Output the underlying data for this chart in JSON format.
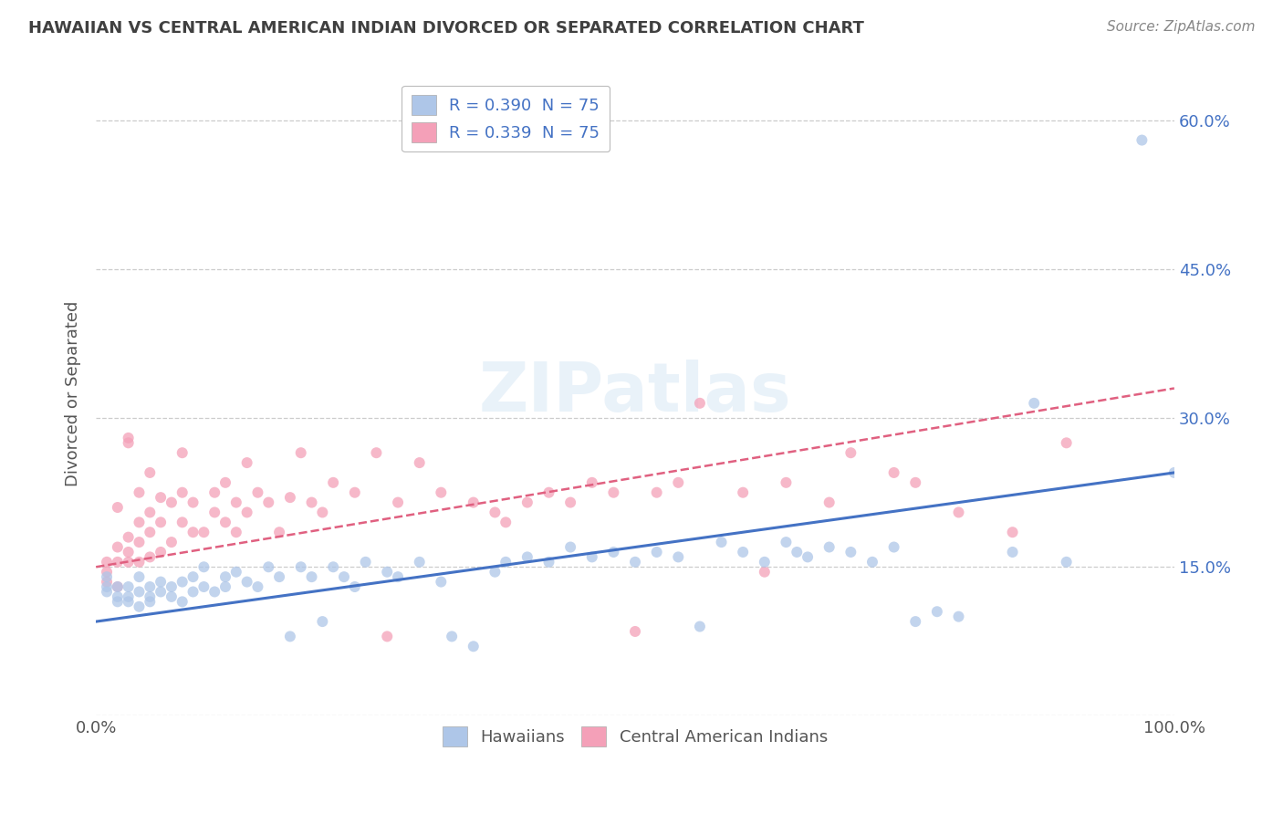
{
  "title": "HAWAIIAN VS CENTRAL AMERICAN INDIAN DIVORCED OR SEPARATED CORRELATION CHART",
  "source": "Source: ZipAtlas.com",
  "ylabel": "Divorced or Separated",
  "watermark": "ZIPatlas",
  "legend_entries": [
    {
      "label": "R = 0.390  N = 75",
      "color": "#aec6e8"
    },
    {
      "label": "R = 0.339  N = 75",
      "color": "#f4a0b8"
    }
  ],
  "legend_names": [
    "Hawaiians",
    "Central American Indians"
  ],
  "xlim": [
    0.0,
    1.0
  ],
  "ylim": [
    0.0,
    0.65
  ],
  "x_ticks": [
    0.0,
    0.1,
    0.2,
    0.3,
    0.4,
    0.5,
    0.6,
    0.7,
    0.8,
    0.9,
    1.0
  ],
  "x_tick_labels": [
    "0.0%",
    "",
    "",
    "",
    "",
    "",
    "",
    "",
    "",
    "",
    "100.0%"
  ],
  "y_ticks": [
    0.0,
    0.15,
    0.3,
    0.45,
    0.6
  ],
  "right_y_tick_labels": [
    "",
    "15.0%",
    "30.0%",
    "45.0%",
    "60.0%"
  ],
  "hawaiians_color": "#aec6e8",
  "central_american_color": "#f4a0b8",
  "hawaiians_line_color": "#4472c4",
  "central_american_line_color": "#e06080",
  "background_color": "#ffffff",
  "grid_color": "#cccccc",
  "hawaiians_scatter": [
    [
      0.01,
      0.125
    ],
    [
      0.01,
      0.13
    ],
    [
      0.01,
      0.14
    ],
    [
      0.02,
      0.115
    ],
    [
      0.02,
      0.13
    ],
    [
      0.02,
      0.12
    ],
    [
      0.03,
      0.13
    ],
    [
      0.03,
      0.12
    ],
    [
      0.03,
      0.115
    ],
    [
      0.04,
      0.14
    ],
    [
      0.04,
      0.125
    ],
    [
      0.04,
      0.11
    ],
    [
      0.05,
      0.13
    ],
    [
      0.05,
      0.12
    ],
    [
      0.05,
      0.115
    ],
    [
      0.06,
      0.135
    ],
    [
      0.06,
      0.125
    ],
    [
      0.07,
      0.13
    ],
    [
      0.07,
      0.12
    ],
    [
      0.08,
      0.135
    ],
    [
      0.08,
      0.115
    ],
    [
      0.09,
      0.14
    ],
    [
      0.09,
      0.125
    ],
    [
      0.1,
      0.15
    ],
    [
      0.1,
      0.13
    ],
    [
      0.11,
      0.125
    ],
    [
      0.12,
      0.14
    ],
    [
      0.12,
      0.13
    ],
    [
      0.13,
      0.145
    ],
    [
      0.14,
      0.135
    ],
    [
      0.15,
      0.13
    ],
    [
      0.16,
      0.15
    ],
    [
      0.17,
      0.14
    ],
    [
      0.18,
      0.08
    ],
    [
      0.19,
      0.15
    ],
    [
      0.2,
      0.14
    ],
    [
      0.21,
      0.095
    ],
    [
      0.22,
      0.15
    ],
    [
      0.23,
      0.14
    ],
    [
      0.24,
      0.13
    ],
    [
      0.25,
      0.155
    ],
    [
      0.27,
      0.145
    ],
    [
      0.28,
      0.14
    ],
    [
      0.3,
      0.155
    ],
    [
      0.32,
      0.135
    ],
    [
      0.33,
      0.08
    ],
    [
      0.35,
      0.07
    ],
    [
      0.37,
      0.145
    ],
    [
      0.38,
      0.155
    ],
    [
      0.4,
      0.16
    ],
    [
      0.42,
      0.155
    ],
    [
      0.44,
      0.17
    ],
    [
      0.46,
      0.16
    ],
    [
      0.48,
      0.165
    ],
    [
      0.5,
      0.155
    ],
    [
      0.52,
      0.165
    ],
    [
      0.54,
      0.16
    ],
    [
      0.56,
      0.09
    ],
    [
      0.58,
      0.175
    ],
    [
      0.6,
      0.165
    ],
    [
      0.62,
      0.155
    ],
    [
      0.64,
      0.175
    ],
    [
      0.65,
      0.165
    ],
    [
      0.66,
      0.16
    ],
    [
      0.68,
      0.17
    ],
    [
      0.7,
      0.165
    ],
    [
      0.72,
      0.155
    ],
    [
      0.74,
      0.17
    ],
    [
      0.76,
      0.095
    ],
    [
      0.78,
      0.105
    ],
    [
      0.8,
      0.1
    ],
    [
      0.85,
      0.165
    ],
    [
      0.87,
      0.315
    ],
    [
      0.9,
      0.155
    ],
    [
      0.97,
      0.58
    ],
    [
      1.0,
      0.245
    ]
  ],
  "central_scatter": [
    [
      0.01,
      0.155
    ],
    [
      0.01,
      0.145
    ],
    [
      0.01,
      0.135
    ],
    [
      0.02,
      0.17
    ],
    [
      0.02,
      0.155
    ],
    [
      0.02,
      0.13
    ],
    [
      0.02,
      0.21
    ],
    [
      0.03,
      0.18
    ],
    [
      0.03,
      0.165
    ],
    [
      0.03,
      0.155
    ],
    [
      0.03,
      0.28
    ],
    [
      0.03,
      0.275
    ],
    [
      0.04,
      0.195
    ],
    [
      0.04,
      0.175
    ],
    [
      0.04,
      0.155
    ],
    [
      0.04,
      0.225
    ],
    [
      0.05,
      0.185
    ],
    [
      0.05,
      0.16
    ],
    [
      0.05,
      0.205
    ],
    [
      0.05,
      0.245
    ],
    [
      0.06,
      0.22
    ],
    [
      0.06,
      0.195
    ],
    [
      0.06,
      0.165
    ],
    [
      0.07,
      0.215
    ],
    [
      0.07,
      0.175
    ],
    [
      0.08,
      0.225
    ],
    [
      0.08,
      0.195
    ],
    [
      0.08,
      0.265
    ],
    [
      0.09,
      0.215
    ],
    [
      0.09,
      0.185
    ],
    [
      0.1,
      0.185
    ],
    [
      0.11,
      0.225
    ],
    [
      0.11,
      0.205
    ],
    [
      0.12,
      0.235
    ],
    [
      0.12,
      0.195
    ],
    [
      0.13,
      0.185
    ],
    [
      0.13,
      0.215
    ],
    [
      0.14,
      0.255
    ],
    [
      0.14,
      0.205
    ],
    [
      0.15,
      0.225
    ],
    [
      0.16,
      0.215
    ],
    [
      0.17,
      0.185
    ],
    [
      0.18,
      0.22
    ],
    [
      0.19,
      0.265
    ],
    [
      0.2,
      0.215
    ],
    [
      0.21,
      0.205
    ],
    [
      0.22,
      0.235
    ],
    [
      0.24,
      0.225
    ],
    [
      0.26,
      0.265
    ],
    [
      0.27,
      0.08
    ],
    [
      0.28,
      0.215
    ],
    [
      0.3,
      0.255
    ],
    [
      0.32,
      0.225
    ],
    [
      0.35,
      0.215
    ],
    [
      0.37,
      0.205
    ],
    [
      0.38,
      0.195
    ],
    [
      0.4,
      0.215
    ],
    [
      0.42,
      0.225
    ],
    [
      0.44,
      0.215
    ],
    [
      0.46,
      0.235
    ],
    [
      0.48,
      0.225
    ],
    [
      0.5,
      0.085
    ],
    [
      0.52,
      0.225
    ],
    [
      0.54,
      0.235
    ],
    [
      0.56,
      0.315
    ],
    [
      0.6,
      0.225
    ],
    [
      0.62,
      0.145
    ],
    [
      0.64,
      0.235
    ],
    [
      0.68,
      0.215
    ],
    [
      0.7,
      0.265
    ],
    [
      0.74,
      0.245
    ],
    [
      0.76,
      0.235
    ],
    [
      0.8,
      0.205
    ],
    [
      0.85,
      0.185
    ],
    [
      0.9,
      0.275
    ]
  ]
}
